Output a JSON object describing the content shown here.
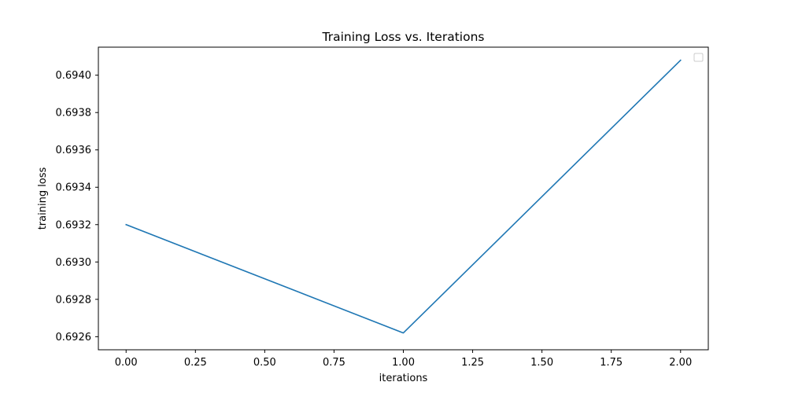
{
  "chart_data": {
    "type": "line",
    "title": "Training Loss vs. Iterations",
    "xlabel": "iterations",
    "ylabel": "training loss",
    "x": [
      0,
      1,
      2
    ],
    "series": [
      {
        "values": [
          0.6932,
          0.69262,
          0.69408
        ],
        "color": "#1f77b4"
      }
    ],
    "xlim": [
      -0.1,
      2.1
    ],
    "ylim": [
      0.69253,
      0.69415
    ],
    "xticks": [
      0.0,
      0.25,
      0.5,
      0.75,
      1.0,
      1.25,
      1.5,
      1.75,
      2.0
    ],
    "xtick_labels": [
      "0.00",
      "0.25",
      "0.50",
      "0.75",
      "1.00",
      "1.25",
      "1.50",
      "1.75",
      "2.00"
    ],
    "yticks": [
      0.6926,
      0.6928,
      0.693,
      0.6932,
      0.6934,
      0.6936,
      0.6938,
      0.694
    ],
    "ytick_labels": [
      "0.6926",
      "0.6928",
      "0.6930",
      "0.6932",
      "0.6934",
      "0.6936",
      "0.6938",
      "0.6940"
    ],
    "grid": false,
    "legend": {
      "position": "top-right",
      "entries": []
    }
  }
}
